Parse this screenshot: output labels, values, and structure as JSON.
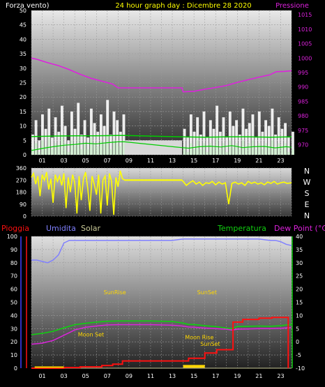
{
  "header": {
    "left_label": "Forza vento)",
    "title": "24 hour graph day : Dicembre 28 2020",
    "right_label": "Pressione"
  },
  "colors": {
    "background": "#000000",
    "pressure": "#dd22dd",
    "wind": "#ffffff",
    "wind_avg": "#00cc00",
    "wind_dir": "#ffff00",
    "rain": "#ff1010",
    "humidity": "#8080ff",
    "solar": "#cccc99",
    "temperature": "#10d010",
    "dewpoint": "#dd22dd",
    "sun_moon": "#ffd700"
  },
  "chart_data": [
    {
      "type": "line",
      "id": "wind_pressure",
      "x_ticks": [
        "01",
        "03",
        "05",
        "07",
        "09",
        "11",
        "13",
        "15",
        "17",
        "19",
        "21",
        "23"
      ],
      "xlim": [
        0,
        24
      ],
      "y_left_ticks": [
        0,
        5,
        10,
        15,
        20,
        25,
        30,
        35,
        40,
        45,
        50
      ],
      "ylim_left": [
        0,
        50
      ],
      "y_right_ticks": [
        970,
        975,
        980,
        985,
        990,
        995,
        1000,
        1005,
        1010,
        1015
      ],
      "ylim_right": [
        966.5,
        1016.5
      ],
      "gap_hours": [
        8.6,
        13.9
      ],
      "series": [
        {
          "name": "Pressione",
          "axis": "right",
          "x": [
            0,
            0.5,
            1.5,
            2.5,
            3.5,
            4.5,
            5.5,
            6.5,
            7.5,
            8.0,
            9.0,
            10.0,
            11.0,
            12.0,
            13.0,
            13.9,
            14.0,
            15.0,
            16.0,
            17.0,
            18.0,
            19.0,
            20.0,
            21.0,
            22.0,
            22.6,
            23.3,
            24.0
          ],
          "y": [
            1000,
            999.6,
            998.4,
            997.4,
            996,
            994.4,
            993,
            992,
            991,
            989.7,
            989.7,
            989.7,
            989.7,
            989.7,
            989.7,
            989.7,
            988.3,
            988.5,
            989.2,
            989.8,
            990.5,
            991.6,
            992.5,
            993.4,
            994.2,
            995.3,
            995.4,
            995.6
          ]
        },
        {
          "name": "gust",
          "axis": "left",
          "x": [
            0,
            0.3,
            0.6,
            0.9,
            1.2,
            1.5,
            1.8,
            2.1,
            2.4,
            2.7,
            3.0,
            3.3,
            3.6,
            3.9,
            4.2,
            4.5,
            4.8,
            5.1,
            5.4,
            5.7,
            6.0,
            6.3,
            6.6,
            6.9,
            7.2,
            7.5,
            7.8,
            8.1,
            8.4,
            14.0,
            14.3,
            14.6,
            14.9,
            15.2,
            15.5,
            15.8,
            16.1,
            16.4,
            16.7,
            17.0,
            17.3,
            17.6,
            17.9,
            18.2,
            18.5,
            18.8,
            19.1,
            19.4,
            19.7,
            20.0,
            20.3,
            20.6,
            20.9,
            21.2,
            21.5,
            21.8,
            22.1,
            22.4,
            22.7,
            23.0,
            23.3,
            23.6,
            24.0
          ],
          "y": [
            7,
            12,
            5,
            14,
            9,
            16,
            6,
            13,
            8,
            17,
            10,
            5,
            15,
            9,
            18,
            7,
            12,
            6,
            16,
            11,
            8,
            14,
            10,
            19,
            7,
            15,
            12,
            8,
            14,
            9,
            6,
            14,
            8,
            13,
            7,
            15,
            6,
            12,
            9,
            17,
            8,
            13,
            6,
            15,
            10,
            12,
            7,
            16,
            9,
            11,
            14,
            6,
            15,
            8,
            12,
            10,
            16,
            7,
            13,
            9,
            11,
            6,
            8
          ]
        },
        {
          "name": "wind_speed",
          "axis": "left",
          "x": [
            0,
            0.3,
            0.6,
            0.9,
            1.2,
            1.5,
            1.8,
            2.1,
            2.4,
            2.7,
            3.0,
            3.3,
            3.6,
            3.9,
            4.2,
            4.5,
            4.8,
            5.1,
            5.4,
            5.7,
            6.0,
            6.3,
            6.6,
            6.9,
            7.2,
            7.5,
            7.8,
            8.1,
            8.4,
            14.0,
            14.3,
            14.6,
            14.9,
            15.2,
            15.5,
            15.8,
            16.1,
            16.4,
            16.7,
            17.0,
            17.3,
            17.6,
            17.9,
            18.2,
            18.5,
            18.8,
            19.1,
            19.4,
            19.7,
            20.0,
            20.3,
            20.6,
            20.9,
            21.2,
            21.5,
            21.8,
            22.1,
            22.4,
            22.7,
            23.0,
            23.3,
            23.6,
            24.0
          ],
          "y": [
            2,
            4,
            1,
            5,
            3,
            6,
            2,
            4,
            3,
            7,
            4,
            1,
            5,
            3,
            6,
            2,
            4,
            2,
            6,
            4,
            3,
            5,
            4,
            7,
            2,
            5,
            4,
            3,
            5,
            3,
            1,
            4,
            2,
            5,
            2,
            4,
            1,
            4,
            3,
            6,
            2,
            4,
            1,
            5,
            3,
            4,
            2,
            5,
            3,
            4,
            5,
            2,
            4,
            2,
            4,
            3,
            5,
            2,
            4,
            3,
            4,
            1,
            2
          ]
        },
        {
          "name": "wind_avg",
          "axis": "left",
          "x": [
            0,
            1,
            2,
            3,
            4,
            5,
            6,
            7,
            8,
            8.6,
            13.9,
            14.5,
            15.5,
            16.5,
            17.5,
            18.5,
            19.5,
            20.5,
            21.5,
            22.5,
            23.5,
            24
          ],
          "y": [
            1.5,
            2.2,
            2.8,
            3.3,
            3.6,
            4.0,
            3.8,
            4.2,
            4.5,
            4.5,
            2.5,
            2.3,
            2.8,
            3.0,
            2.7,
            3.2,
            2.5,
            2.8,
            2.9,
            2.4,
            2.8,
            2.6
          ]
        },
        {
          "name": "wind_avg_hi",
          "axis": "left",
          "x": [
            0,
            2,
            4,
            6,
            8,
            8.6,
            13.9,
            16,
            18,
            20,
            22,
            24
          ],
          "y": [
            6.3,
            6.5,
            6.6,
            6.6,
            6.7,
            6.7,
            6.2,
            6.1,
            6.2,
            6.2,
            6.1,
            6.2
          ]
        }
      ]
    },
    {
      "type": "scatter",
      "id": "wind_direction",
      "x_ticks": [],
      "xlim": [
        0,
        24
      ],
      "y_ticks": [
        0,
        90,
        180,
        270,
        360
      ],
      "ylim": [
        0,
        360
      ],
      "compass_labels": [
        "N",
        "W",
        "S",
        "E",
        "N"
      ],
      "gap_hours": [
        8.6,
        13.9
      ],
      "series": [
        {
          "name": "direction",
          "x": [
            0,
            0.2,
            0.4,
            0.6,
            0.8,
            1.0,
            1.2,
            1.4,
            1.6,
            1.8,
            2.0,
            2.2,
            2.4,
            2.6,
            2.8,
            3.0,
            3.2,
            3.4,
            3.6,
            3.8,
            4.0,
            4.2,
            4.4,
            4.6,
            4.8,
            5.0,
            5.2,
            5.4,
            5.6,
            5.8,
            6.0,
            6.2,
            6.4,
            6.6,
            6.8,
            7.0,
            7.2,
            7.4,
            7.6,
            7.8,
            8.0,
            8.2,
            8.4,
            8.6,
            13.9,
            14.0,
            14.3,
            14.6,
            14.9,
            15.2,
            15.5,
            15.8,
            16.1,
            16.4,
            16.7,
            17.0,
            17.3,
            17.6,
            17.9,
            18.2,
            18.5,
            18.8,
            19.1,
            19.4,
            19.7,
            20.0,
            20.3,
            20.6,
            20.9,
            21.2,
            21.5,
            21.8,
            22.1,
            22.4,
            22.7,
            23.0,
            23.3,
            23.6,
            24.0
          ],
          "y": [
            290,
            320,
            240,
            300,
            150,
            310,
            270,
            330,
            200,
            280,
            100,
            310,
            260,
            300,
            230,
            320,
            60,
            290,
            180,
            310,
            250,
            20,
            300,
            120,
            280,
            330,
            210,
            40,
            300,
            240,
            160,
            310,
            20,
            270,
            300,
            80,
            320,
            260,
            10,
            290,
            220,
            340,
            280,
            270,
            270,
            260,
            230,
            250,
            265,
            240,
            255,
            230,
            250,
            245,
            260,
            235,
            255,
            240,
            250,
            90,
            245,
            255,
            240,
            250,
            230,
            260,
            245,
            255,
            240,
            250,
            235,
            255,
            245,
            260,
            240,
            250,
            255,
            245,
            250
          ]
        }
      ]
    },
    {
      "type": "line",
      "id": "rain_humidity_temperature",
      "x_ticks": [
        "01",
        "03",
        "05",
        "07",
        "09",
        "11",
        "13",
        "15",
        "17",
        "19",
        "21",
        "23"
      ],
      "xlim": [
        0,
        24
      ],
      "y_left_ticks": [
        0,
        10,
        20,
        30,
        40,
        50,
        60,
        70,
        80,
        90,
        100
      ],
      "ylim_left": [
        0,
        100
      ],
      "y_right_ticks": [
        -10,
        -5,
        0,
        5,
        10,
        15,
        20,
        25,
        30,
        35,
        40
      ],
      "ylim_right": [
        -10,
        40
      ],
      "legend": [
        "Pioggia",
        "Umidita",
        "Solar",
        "Temperatura",
        "Dew Point (°C)"
      ],
      "annotations": [
        {
          "label": "SunRise",
          "x": 7.7,
          "y": 18
        },
        {
          "label": "SunSet",
          "x": 16.2,
          "y": 18
        },
        {
          "label": "Moon Set",
          "x": 5.5,
          "y": 2
        },
        {
          "label": "Moon Rise",
          "x": 15.5,
          "y": 1
        },
        {
          "label": "SunSet",
          "x": 16.5,
          "y": -1.5
        }
      ],
      "series": [
        {
          "name": "Umidita",
          "axis": "left",
          "x": [
            0,
            0.5,
            1,
            1.5,
            2,
            2.5,
            3,
            3.5,
            4,
            5,
            6,
            7,
            8,
            9,
            10,
            11,
            12,
            13,
            14,
            15,
            16,
            17,
            18,
            19,
            20,
            21,
            22,
            22.5,
            23,
            23.5,
            24
          ],
          "y": [
            82,
            82,
            81,
            80,
            82,
            86,
            95,
            97,
            97,
            97,
            97,
            97,
            97,
            97,
            97,
            97,
            97,
            97,
            98,
            98,
            98,
            98,
            98,
            98,
            98,
            98,
            97,
            97,
            96,
            94,
            93
          ]
        },
        {
          "name": "Temperatura",
          "axis": "right",
          "x": [
            0,
            1,
            2,
            3,
            4,
            5,
            6,
            7,
            8,
            9,
            10,
            11,
            12,
            13,
            13.9,
            14.5,
            15,
            16,
            17,
            18,
            18.5,
            19,
            20,
            21,
            22,
            23,
            23.5,
            24
          ],
          "y": [
            2.7,
            3.2,
            4.0,
            5.3,
            6.5,
            7.0,
            7.5,
            7.8,
            7.9,
            7.9,
            7.9,
            7.9,
            7.8,
            7.7,
            7.2,
            6.6,
            6.6,
            6.1,
            5.8,
            5.2,
            5.0,
            5.8,
            5.9,
            6.0,
            5.9,
            6.1,
            6.4,
            6.6
          ]
        },
        {
          "name": "Dew Point (°C)",
          "axis": "right",
          "x": [
            0,
            1,
            2,
            3,
            4,
            5,
            6,
            7,
            8,
            9,
            10,
            11,
            12,
            13,
            13.9,
            14.5,
            15,
            16,
            17,
            18,
            18.5,
            19,
            20,
            21,
            22,
            23,
            24
          ],
          "y": [
            -0.9,
            -0.5,
            0.5,
            2.5,
            4.5,
            5.5,
            6.0,
            6.4,
            6.5,
            6.5,
            6.5,
            6.5,
            6.4,
            6.3,
            6.0,
            5.6,
            5.5,
            5.2,
            5.0,
            4.8,
            4.5,
            4.8,
            4.9,
            5.0,
            5.0,
            5.1,
            5.4
          ]
        },
        {
          "name": "Pioggia",
          "axis": "left",
          "step": true,
          "x": [
            0,
            1.5,
            3.0,
            4.5,
            6.5,
            7.5,
            8.4,
            13.6,
            14.5,
            16.0,
            17.1,
            18.6,
            19.5,
            21.0,
            22.2,
            23.1,
            23.7,
            23.7
          ],
          "y": [
            0,
            0,
            0.5,
            1.0,
            2.0,
            3.0,
            5.5,
            5.5,
            7.5,
            11.5,
            14.0,
            35,
            37,
            38,
            38.5,
            38.5,
            38.5,
            0
          ]
        },
        {
          "name": "Solar",
          "axis": "left",
          "x": [
            0,
            24
          ],
          "y": [
            0,
            0
          ]
        }
      ]
    }
  ]
}
